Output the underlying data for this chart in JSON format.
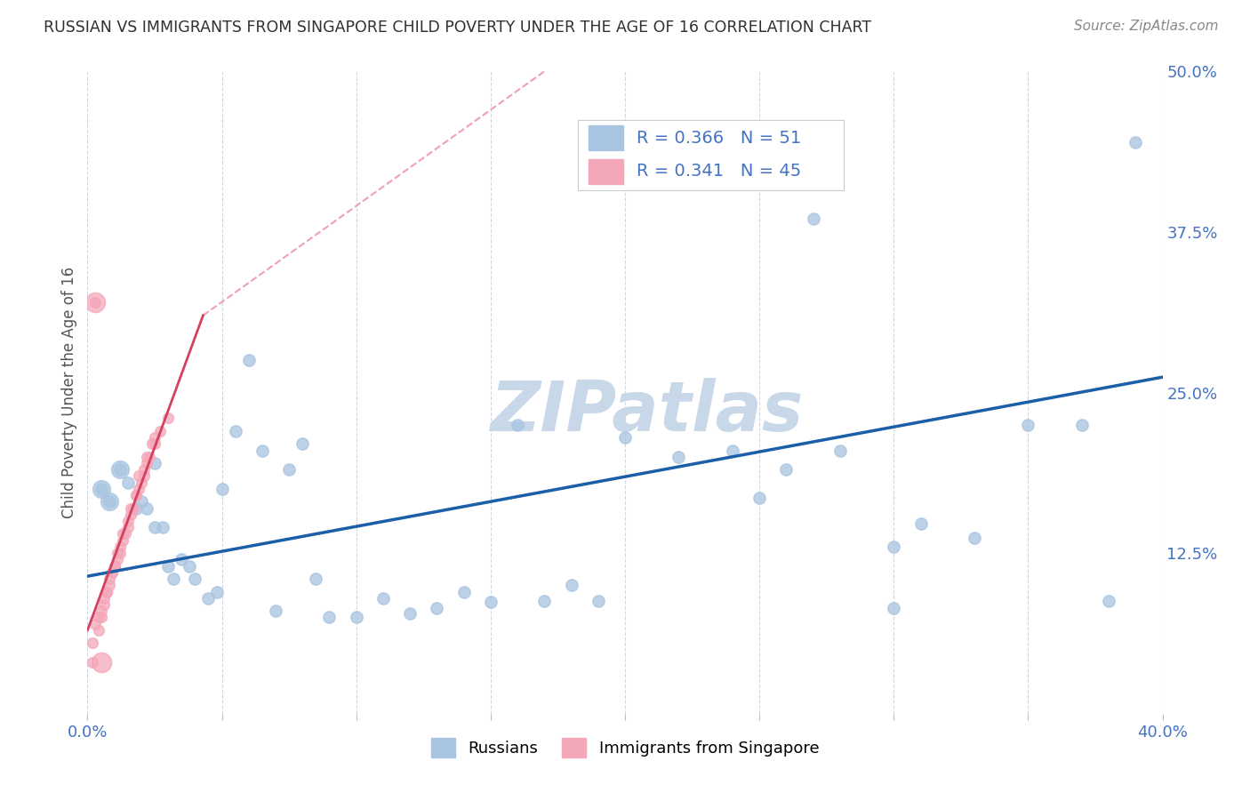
{
  "title": "RUSSIAN VS IMMIGRANTS FROM SINGAPORE CHILD POVERTY UNDER THE AGE OF 16 CORRELATION CHART",
  "source": "Source: ZipAtlas.com",
  "ylabel": "Child Poverty Under the Age of 16",
  "xlim": [
    0.0,
    0.4
  ],
  "ylim": [
    0.0,
    0.5
  ],
  "xticks": [
    0.0,
    0.05,
    0.1,
    0.15,
    0.2,
    0.25,
    0.3,
    0.35,
    0.4
  ],
  "yticks": [
    0.0,
    0.125,
    0.25,
    0.375,
    0.5
  ],
  "legend_entries": [
    {
      "label": "Russians",
      "color": "#a8c4e0",
      "R": 0.366,
      "N": 51
    },
    {
      "label": "Immigrants from Singapore",
      "color": "#f4a7b9",
      "R": 0.341,
      "N": 45
    }
  ],
  "blue_trendline_color": "#1a5fa8",
  "pink_trendline_color": "#d44060",
  "pink_dashed_color": "#f0a0b0",
  "blue_trendline": [
    [
      0.0,
      0.107
    ],
    [
      0.4,
      0.262
    ]
  ],
  "pink_trendline_solid": [
    [
      0.0,
      0.065
    ],
    [
      0.043,
      0.31
    ]
  ],
  "pink_trendline_dashed": [
    [
      0.043,
      0.31
    ],
    [
      0.17,
      0.5
    ]
  ],
  "watermark_text": "ZIPatlas",
  "watermark_color": "#c8d8e8",
  "grid_color": "#d0d8e0",
  "background_color": "#ffffff",
  "title_color": "#303030",
  "axis_label_color": "#555555",
  "tick_color": "#4472c4",
  "russians_x": [
    0.005,
    0.008,
    0.012,
    0.015,
    0.018,
    0.02,
    0.022,
    0.025,
    0.025,
    0.028,
    0.03,
    0.032,
    0.035,
    0.038,
    0.04,
    0.045,
    0.048,
    0.05,
    0.055,
    0.06,
    0.065,
    0.07,
    0.075,
    0.08,
    0.085,
    0.09,
    0.1,
    0.11,
    0.12,
    0.13,
    0.14,
    0.15,
    0.16,
    0.17,
    0.18,
    0.19,
    0.2,
    0.22,
    0.24,
    0.25,
    0.26,
    0.27,
    0.28,
    0.3,
    0.31,
    0.33,
    0.35,
    0.37,
    0.38,
    0.39,
    0.3
  ],
  "russians_y": [
    0.175,
    0.165,
    0.19,
    0.18,
    0.16,
    0.165,
    0.16,
    0.195,
    0.145,
    0.145,
    0.115,
    0.105,
    0.12,
    0.115,
    0.105,
    0.09,
    0.095,
    0.175,
    0.22,
    0.275,
    0.205,
    0.08,
    0.19,
    0.21,
    0.105,
    0.075,
    0.075,
    0.09,
    0.078,
    0.082,
    0.095,
    0.087,
    0.225,
    0.088,
    0.1,
    0.088,
    0.215,
    0.2,
    0.205,
    0.168,
    0.19,
    0.385,
    0.205,
    0.13,
    0.148,
    0.137,
    0.225,
    0.225,
    0.088,
    0.445,
    0.082
  ],
  "singapore_x": [
    0.002,
    0.003,
    0.004,
    0.005,
    0.006,
    0.007,
    0.008,
    0.009,
    0.01,
    0.011,
    0.012,
    0.013,
    0.014,
    0.015,
    0.016,
    0.017,
    0.018,
    0.019,
    0.02,
    0.021,
    0.022,
    0.023,
    0.025,
    0.027,
    0.003,
    0.002,
    0.004,
    0.006,
    0.008,
    0.01,
    0.012,
    0.015,
    0.018,
    0.021,
    0.024,
    0.005,
    0.007,
    0.009,
    0.011,
    0.013,
    0.016,
    0.019,
    0.022,
    0.025,
    0.03
  ],
  "singapore_y": [
    0.055,
    0.07,
    0.075,
    0.08,
    0.09,
    0.095,
    0.1,
    0.11,
    0.115,
    0.12,
    0.125,
    0.135,
    0.14,
    0.145,
    0.155,
    0.16,
    0.17,
    0.175,
    0.18,
    0.185,
    0.195,
    0.2,
    0.21,
    0.22,
    0.32,
    0.04,
    0.065,
    0.085,
    0.105,
    0.115,
    0.13,
    0.15,
    0.17,
    0.19,
    0.21,
    0.075,
    0.095,
    0.11,
    0.125,
    0.14,
    0.16,
    0.185,
    0.2,
    0.215,
    0.23
  ],
  "singapore_sizes_large": [
    180,
    200,
    150
  ],
  "dot_size_blue": 90,
  "dot_size_pink": 70
}
